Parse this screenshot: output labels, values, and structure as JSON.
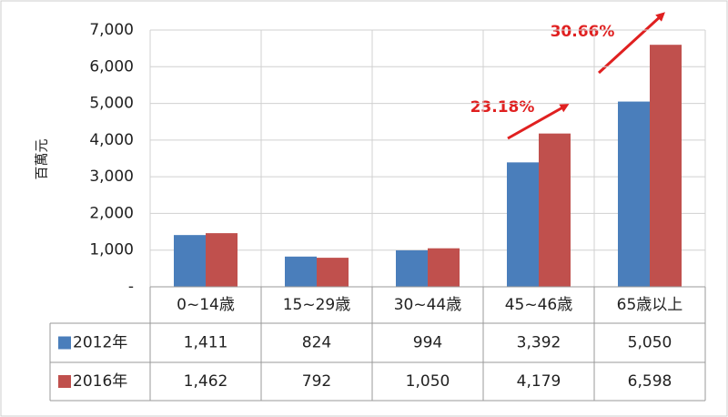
{
  "chart_data": {
    "type": "bar",
    "y_label": "百萬元",
    "categories": [
      "0~14歳",
      "15~29歳",
      "30~44歳",
      "45~46歳",
      "65歳以上"
    ],
    "series": [
      {
        "name": "2012年",
        "color": "#4a7ebb",
        "values": [
          1411,
          824,
          994,
          3392,
          5050
        ],
        "value_labels": [
          "1,411",
          "824",
          "994",
          "3,392",
          "5,050"
        ]
      },
      {
        "name": "2016年",
        "color": "#c0504d",
        "values": [
          1462,
          792,
          1050,
          4179,
          6598
        ],
        "value_labels": [
          "1,462",
          "792",
          "1,050",
          "4,179",
          "6,598"
        ]
      }
    ],
    "ylim": [
      0,
      7000
    ],
    "yticks": [
      {
        "value": 0,
        "label": "-"
      },
      {
        "value": 1000,
        "label": "1,000"
      },
      {
        "value": 2000,
        "label": "2,000"
      },
      {
        "value": 3000,
        "label": "3,000"
      },
      {
        "value": 4000,
        "label": "4,000"
      },
      {
        "value": 5000,
        "label": "5,000"
      },
      {
        "value": 6000,
        "label": "6,000"
      },
      {
        "value": 7000,
        "label": "7,000"
      }
    ],
    "annotations": [
      {
        "text": "23.18%"
      },
      {
        "text": "30.66%"
      }
    ],
    "grid": true
  }
}
